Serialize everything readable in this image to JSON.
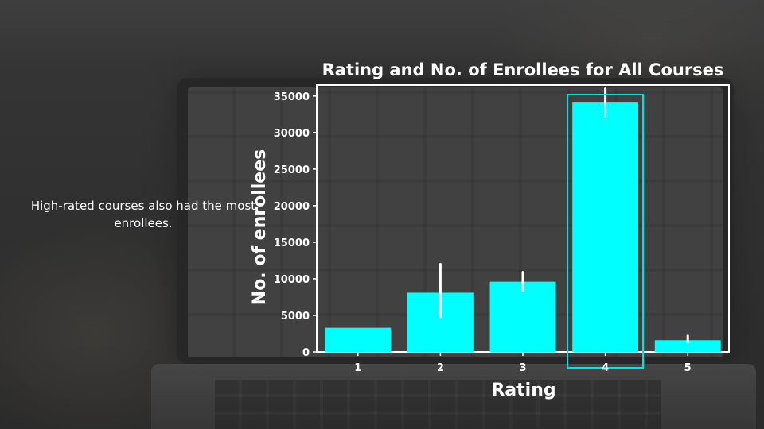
{
  "slide": {
    "caption": "High-rated courses also had the most enrollees."
  },
  "colors": {
    "bar": "#00ffff",
    "highlight": "#00e5e5",
    "error_bar": "#ffffff",
    "text": "#ffffff"
  },
  "chart_data": {
    "type": "bar",
    "title": "Rating and No. of Enrollees for All Courses",
    "xlabel": "Rating",
    "ylabel": "No. of enrollees",
    "categories": [
      "1",
      "2",
      "3",
      "4",
      "5"
    ],
    "values": [
      3300,
      8100,
      9600,
      34100,
      1600
    ],
    "error_low": [
      3300,
      4800,
      8300,
      32200,
      1300
    ],
    "error_high": [
      3300,
      12000,
      10900,
      36000,
      2200
    ],
    "ylim": [
      0,
      36500
    ],
    "yticks": [
      0,
      5000,
      10000,
      15000,
      20000,
      25000,
      30000,
      35000
    ],
    "highlighted_category": "4",
    "grid": false,
    "legend": "none"
  }
}
